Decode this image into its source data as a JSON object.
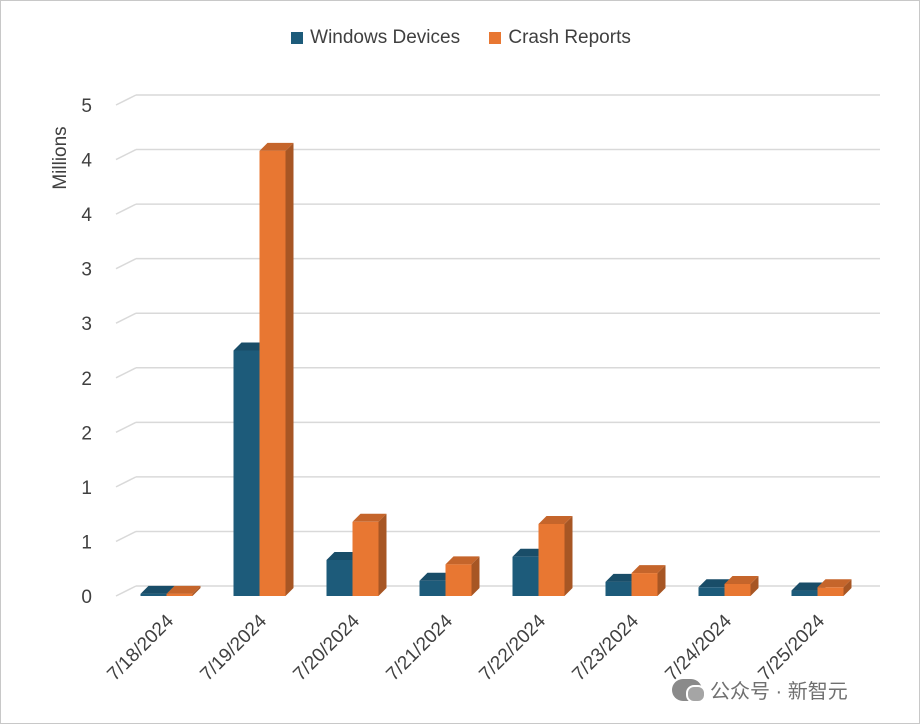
{
  "chart_data": {
    "type": "bar",
    "categories": [
      "7/18/2024",
      "7/19/2024",
      "7/20/2024",
      "7/21/2024",
      "7/22/2024",
      "7/23/2024",
      "7/24/2024",
      "7/25/2024"
    ],
    "series": [
      {
        "name": "Windows Devices",
        "values": [
          0.02,
          2.25,
          0.33,
          0.14,
          0.36,
          0.13,
          0.08,
          0.05
        ]
      },
      {
        "name": "Crash Reports",
        "values": [
          0.02,
          4.08,
          0.68,
          0.29,
          0.66,
          0.21,
          0.11,
          0.08
        ]
      }
    ],
    "ylabel": "Millions",
    "ylim": [
      0,
      4.5
    ],
    "ytick_values": [
      0,
      0.5,
      1,
      1.5,
      2,
      2.5,
      3,
      3.5,
      4,
      4.5
    ],
    "ytick_labels": [
      "0",
      "1",
      "1",
      "2",
      "2",
      "3",
      "3",
      "4",
      "4",
      "5"
    ],
    "grid": true,
    "legend_position": "top-center",
    "style": "3d-clustered-column"
  },
  "colors": {
    "Windows Devices": "#1d5b7a",
    "Crash Reports": "#e87732"
  },
  "watermark": {
    "text": "公众号 · 新智元",
    "icon": "wechat-icon"
  }
}
